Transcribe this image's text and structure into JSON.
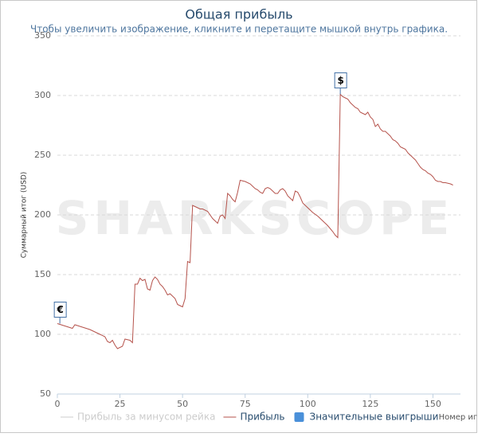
{
  "chart_data": {
    "type": "line",
    "title": "Общая прибыль",
    "subtitle": "Чтобы увеличить изображение, кликните и перетащите мышкой внутрь графика.",
    "ylabel": "Суммарный итог (USD)",
    "xlabel": "Номер игры",
    "watermark": "SHARKSCOPE",
    "x": [
      0,
      3,
      6,
      7,
      10,
      13,
      15,
      17,
      19,
      20,
      21,
      22,
      23,
      24,
      26,
      27,
      29,
      30,
      31,
      32,
      33,
      34,
      35,
      36,
      37,
      38,
      39,
      40,
      41,
      42,
      43,
      44,
      45,
      46,
      47,
      48,
      49,
      50,
      51,
      52,
      53,
      54,
      55,
      56,
      57,
      58,
      60,
      61,
      62,
      63,
      64,
      65,
      66,
      67,
      68,
      69,
      70,
      71,
      72,
      73,
      75,
      77,
      78,
      79,
      80,
      81,
      82,
      83,
      84,
      85,
      86,
      87,
      88,
      89,
      90,
      91,
      92,
      93,
      94,
      95,
      96,
      97,
      98,
      100,
      102,
      104,
      106,
      108,
      110,
      111,
      112,
      113,
      114,
      115,
      116,
      117,
      118,
      119,
      120,
      121,
      122,
      123,
      124,
      125,
      126,
      127,
      128,
      129,
      130,
      131,
      132,
      133,
      134,
      135,
      136,
      137,
      138,
      139,
      140,
      141,
      142,
      143,
      144,
      145,
      146,
      147,
      148,
      149,
      150,
      151,
      152,
      153,
      154,
      155,
      157,
      158
    ],
    "series": [
      {
        "name": "Прибыль",
        "color": "#b5524b",
        "values": [
          109,
          107,
          105,
          108,
          106,
          104,
          102,
          100,
          98,
          94,
          93,
          95,
          91,
          88,
          90,
          96,
          95,
          93,
          142,
          142,
          147,
          145,
          146,
          138,
          137,
          145,
          148,
          146,
          142,
          140,
          137,
          133,
          134,
          132,
          130,
          125,
          124,
          123,
          130,
          161,
          160,
          208,
          207,
          206,
          205,
          205,
          203,
          200,
          197,
          195,
          193,
          199,
          200,
          197,
          218,
          216,
          213,
          211,
          219,
          229,
          228,
          226,
          224,
          222,
          221,
          219,
          218,
          222,
          223,
          222,
          220,
          218,
          218,
          221,
          222,
          220,
          216,
          214,
          212,
          220,
          219,
          215,
          210,
          206,
          202,
          199,
          195,
          191,
          186,
          183,
          181,
          301,
          299,
          298,
          297,
          294,
          292,
          290,
          289,
          286,
          285,
          284,
          286,
          282,
          280,
          274,
          276,
          272,
          270,
          270,
          268,
          266,
          263,
          262,
          260,
          257,
          256,
          255,
          252,
          250,
          248,
          246,
          243,
          240,
          238,
          237,
          235,
          234,
          232,
          229,
          228,
          228,
          227,
          227,
          226,
          225
        ]
      }
    ],
    "legend_extra": [
      {
        "name": "Прибыль за минусом рейка",
        "color": "#cccccc"
      },
      {
        "name": "Значительные выигрыши",
        "color": "#4a90d9"
      }
    ],
    "annotations": [
      {
        "x": 1,
        "y": 109,
        "text": "€"
      },
      {
        "x": 113,
        "y": 301,
        "text": "$"
      }
    ],
    "xlim": [
      0,
      161
    ],
    "xticks": [
      0,
      25,
      50,
      75,
      100,
      125,
      150
    ],
    "ylim": [
      50,
      350
    ],
    "yticks": [
      50,
      100,
      150,
      200,
      250,
      300,
      350
    ],
    "grid": true
  }
}
